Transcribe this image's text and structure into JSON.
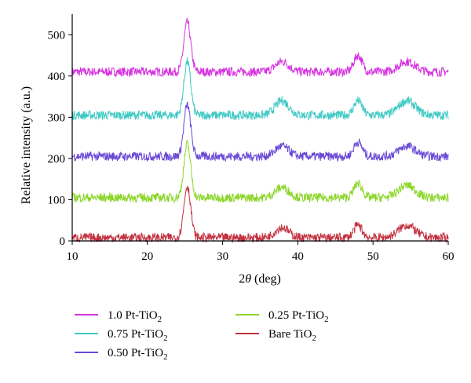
{
  "chart_data": {
    "type": "line",
    "xlabel_prefix": "2",
    "xlabel_theta": "θ",
    "xlabel_suffix": " (deg)",
    "ylabel": "Relative intensity (a.u.)",
    "xlim": [
      10,
      60
    ],
    "ylim": [
      0,
      550
    ],
    "xticks": [
      "10",
      "20",
      "30",
      "40",
      "50",
      "60"
    ],
    "yticks": [
      "0",
      "100",
      "200",
      "300",
      "400",
      "500"
    ],
    "grid": false,
    "legend_position": "bottom",
    "peaks": [
      {
        "x": 25.3,
        "width": 0.45
      },
      {
        "x": 37.9,
        "width": 0.9
      },
      {
        "x": 48.0,
        "width": 0.55
      },
      {
        "x": 54.5,
        "width": 1.1
      }
    ],
    "series": [
      {
        "name": "1.0 Pt-TiO",
        "sub": "2",
        "color": "#d633e0",
        "baseline": 410,
        "peak_heights": [
          120,
          25,
          40,
          25
        ]
      },
      {
        "name": "0.75 Pt-TiO",
        "sub": "2",
        "color": "#3fc9c4",
        "baseline": 305,
        "peak_heights": [
          130,
          35,
          35,
          35
        ]
      },
      {
        "name": "0.50 Pt-TiO",
        "sub": "2",
        "color": "#6a49d6",
        "baseline": 205,
        "peak_heights": [
          125,
          25,
          35,
          25
        ]
      },
      {
        "name": "0.25 Pt-TiO",
        "sub": "2",
        "color": "#8cd62a",
        "baseline": 105,
        "peak_heights": [
          130,
          25,
          35,
          30
        ]
      },
      {
        "name": "Bare TiO",
        "sub": "2",
        "color": "#c2303f",
        "baseline": 8,
        "peak_heights": [
          125,
          25,
          30,
          30
        ]
      }
    ]
  }
}
